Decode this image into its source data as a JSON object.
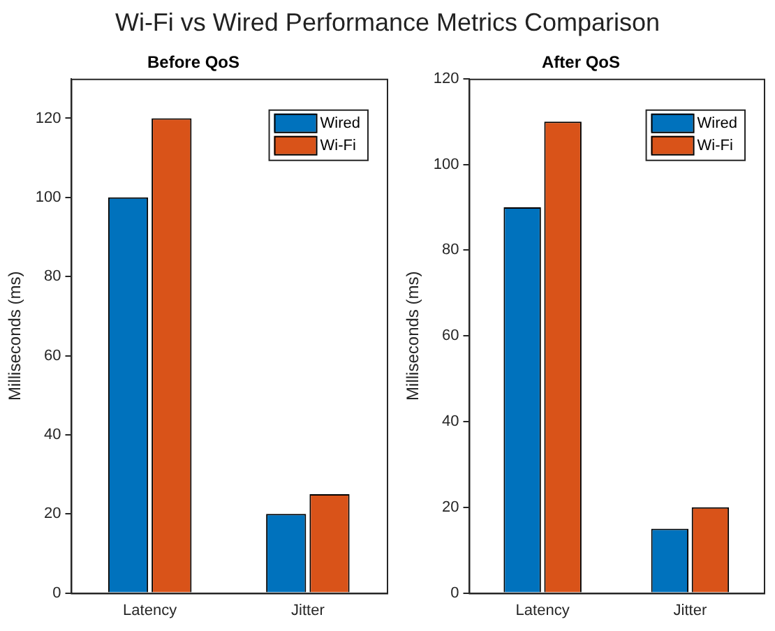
{
  "chart_data": [
    {
      "type": "other",
      "title": "Wi-Fi vs Wired Performance Metrics Comparison"
    },
    {
      "type": "bar",
      "title": "Before QoS",
      "ylabel": "Milliseconds (ms)",
      "categories": [
        "Latency",
        "Jitter"
      ],
      "series": [
        {
          "name": "Wired",
          "color": "#0072bd",
          "values": [
            100,
            20
          ]
        },
        {
          "name": "Wi-Fi",
          "color": "#d95319",
          "values": [
            120,
            25
          ]
        }
      ],
      "ylim": [
        0,
        130
      ],
      "yticks": [
        0,
        20,
        40,
        60,
        80,
        100,
        120
      ],
      "grid": false,
      "legend": "top right"
    },
    {
      "type": "bar",
      "title": "After QoS",
      "ylabel": "Milliseconds (ms)",
      "categories": [
        "Latency",
        "Jitter"
      ],
      "series": [
        {
          "name": "Wired",
          "color": "#0072bd",
          "values": [
            90,
            15
          ]
        },
        {
          "name": "Wi-Fi",
          "color": "#d95319",
          "values": [
            110,
            20
          ]
        }
      ],
      "ylim": [
        0,
        120
      ],
      "yticks": [
        0,
        20,
        40,
        60,
        80,
        100,
        120
      ],
      "grid": false,
      "legend": "top right"
    }
  ]
}
